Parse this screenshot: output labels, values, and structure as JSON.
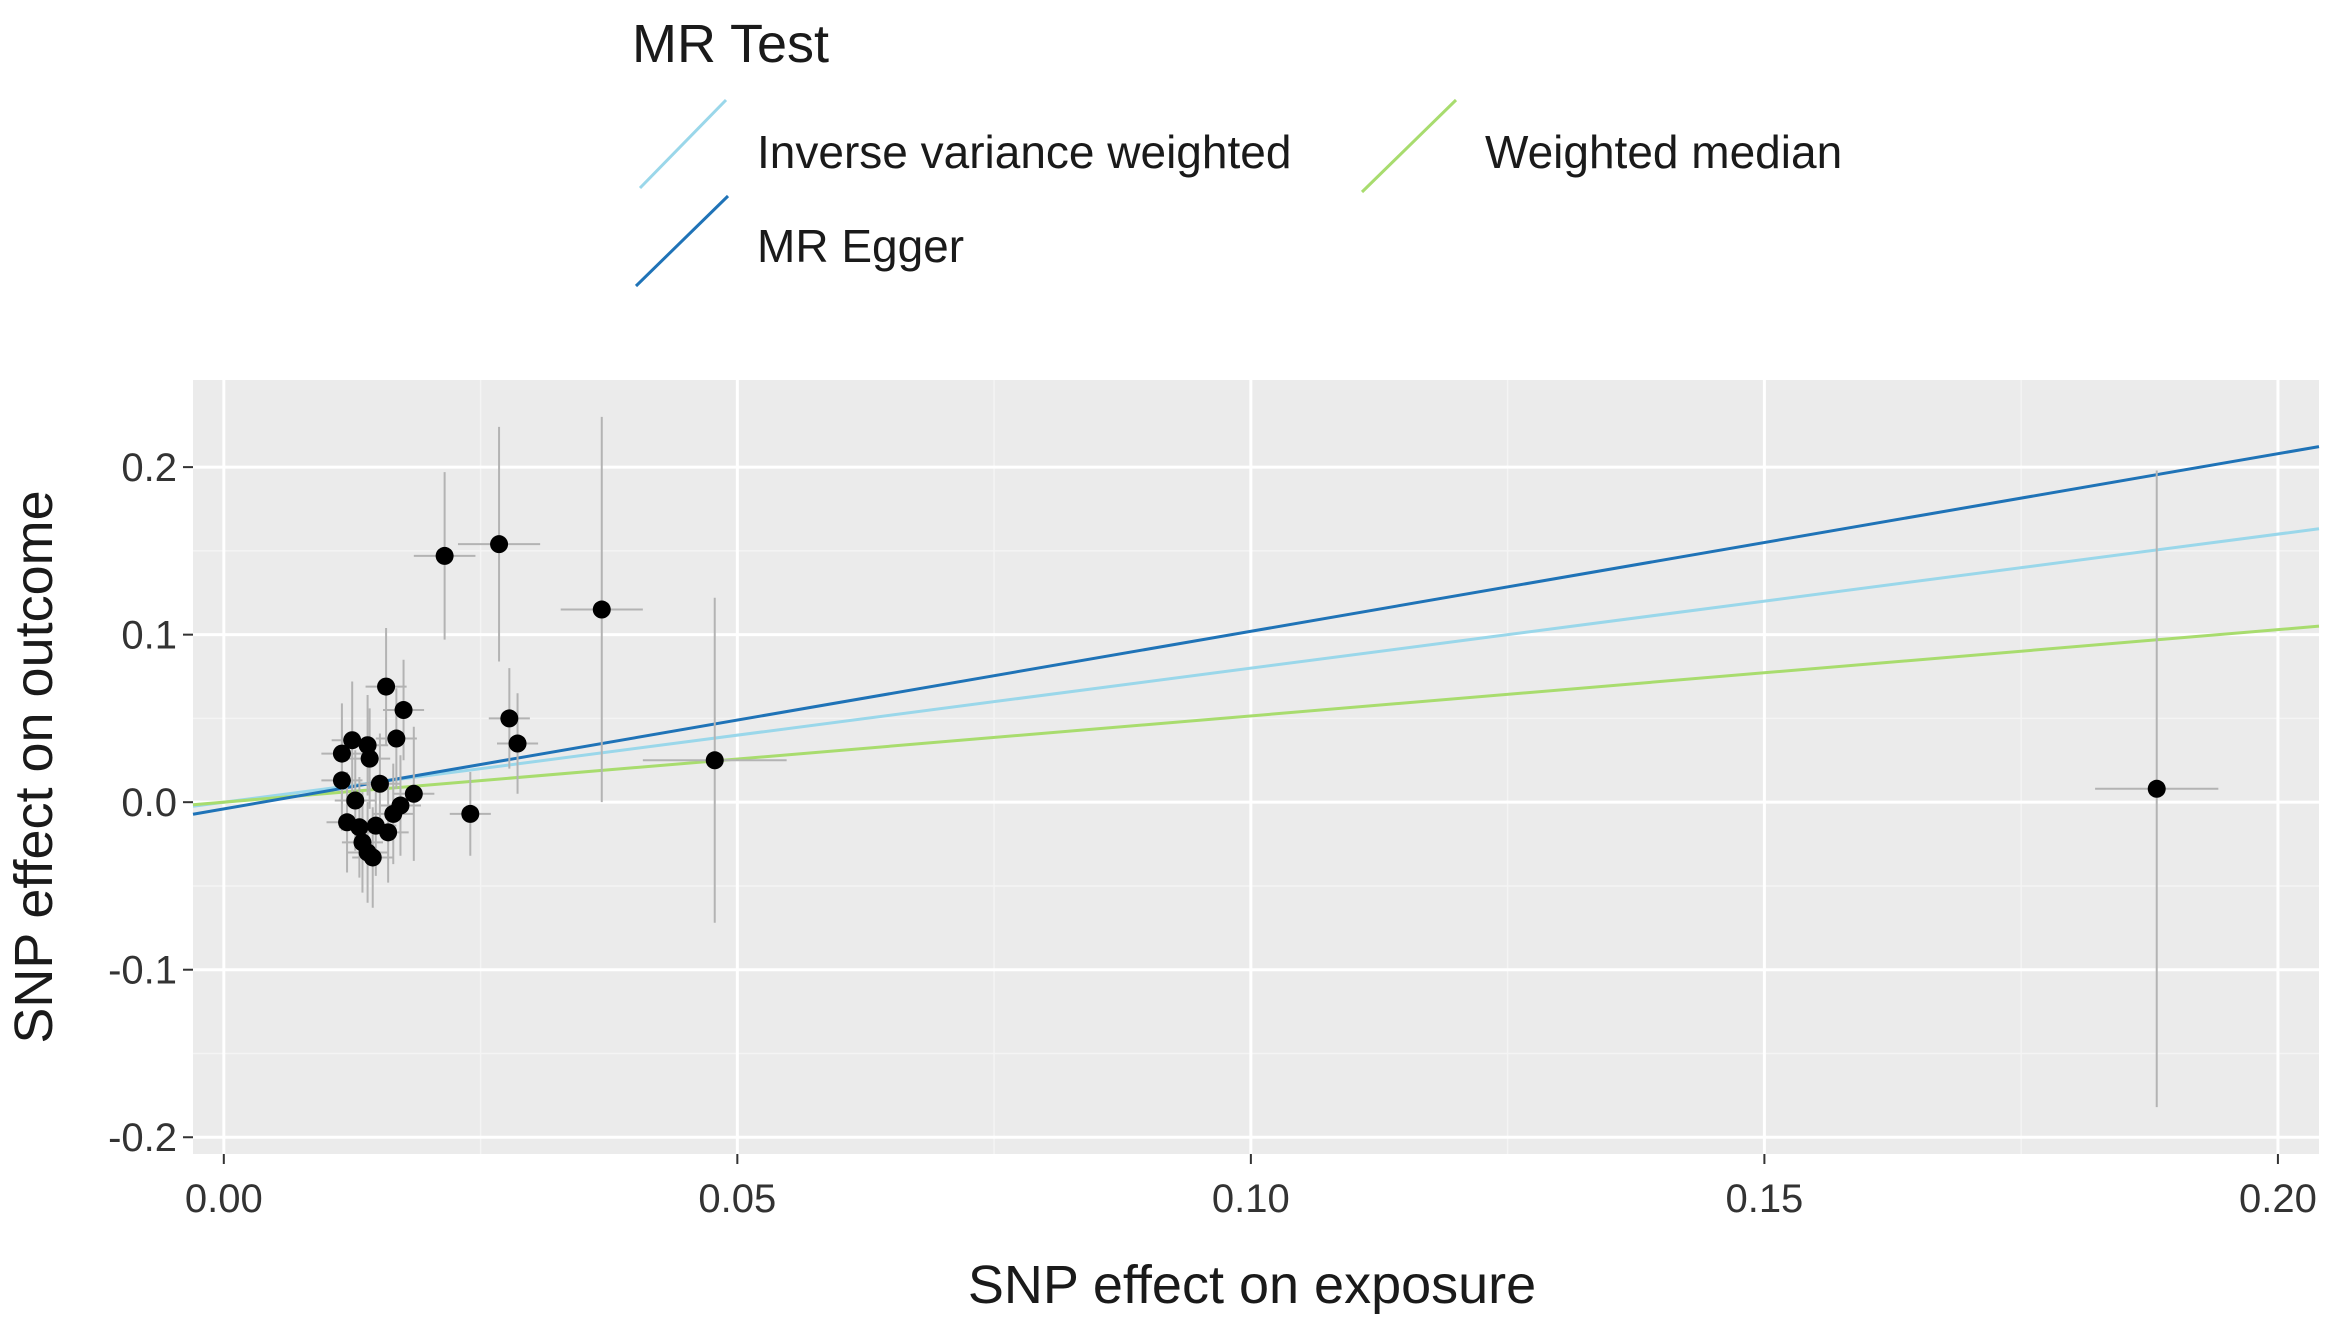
{
  "chart_data": {
    "type": "scatter",
    "title": "",
    "xlabel": "SNP effect on exposure",
    "ylabel": "SNP effect on outcome",
    "xlim": [
      -0.003,
      0.204
    ],
    "ylim": [
      -0.21,
      0.252
    ],
    "xticks": [
      0.0,
      0.05,
      0.1,
      0.15,
      0.2
    ],
    "xtick_labels": [
      "0.00",
      "0.05",
      "0.10",
      "0.15",
      "0.20"
    ],
    "yticks": [
      -0.2,
      -0.1,
      0.0,
      0.1,
      0.2
    ],
    "ytick_labels": [
      "-0.2",
      "-0.1",
      "0.0",
      "0.1",
      "0.2"
    ],
    "grid": true,
    "legend": {
      "title": "MR Test",
      "placement": "top",
      "entries": [
        {
          "label": "Inverse variance weighted",
          "color": "#9ad7ea"
        },
        {
          "label": "Weighted median",
          "color": "#a8dc6e"
        },
        {
          "label": "MR Egger",
          "color": "#1f73b7"
        }
      ]
    },
    "lines": [
      {
        "name": "Inverse variance weighted",
        "color": "#9ad7ea",
        "intercept": 0.0,
        "slope": 0.8
      },
      {
        "name": "Weighted median",
        "color": "#a8dc6e",
        "intercept": 0.0,
        "slope": 0.515
      },
      {
        "name": "MR Egger",
        "color": "#1f73b7",
        "intercept": -0.004,
        "slope": 1.06
      }
    ],
    "points": [
      {
        "x": 0.0115,
        "y": 0.029,
        "xerr": 0.002,
        "yerr": 0.03
      },
      {
        "x": 0.0115,
        "y": 0.013,
        "xerr": 0.002,
        "yerr": 0.03
      },
      {
        "x": 0.012,
        "y": -0.012,
        "xerr": 0.002,
        "yerr": 0.03
      },
      {
        "x": 0.0125,
        "y": 0.037,
        "xerr": 0.002,
        "yerr": 0.035
      },
      {
        "x": 0.0128,
        "y": 0.001,
        "xerr": 0.002,
        "yerr": 0.03
      },
      {
        "x": 0.0132,
        "y": -0.015,
        "xerr": 0.002,
        "yerr": 0.03
      },
      {
        "x": 0.0135,
        "y": -0.024,
        "xerr": 0.002,
        "yerr": 0.03
      },
      {
        "x": 0.014,
        "y": 0.034,
        "xerr": 0.002,
        "yerr": 0.03
      },
      {
        "x": 0.014,
        "y": -0.03,
        "xerr": 0.002,
        "yerr": 0.03
      },
      {
        "x": 0.0142,
        "y": 0.026,
        "xerr": 0.002,
        "yerr": 0.03
      },
      {
        "x": 0.0145,
        "y": -0.033,
        "xerr": 0.002,
        "yerr": 0.03
      },
      {
        "x": 0.0148,
        "y": -0.014,
        "xerr": 0.002,
        "yerr": 0.03
      },
      {
        "x": 0.0152,
        "y": 0.011,
        "xerr": 0.002,
        "yerr": 0.03
      },
      {
        "x": 0.0158,
        "y": 0.069,
        "xerr": 0.002,
        "yerr": 0.035
      },
      {
        "x": 0.016,
        "y": -0.018,
        "xerr": 0.002,
        "yerr": 0.03
      },
      {
        "x": 0.0165,
        "y": -0.007,
        "xerr": 0.002,
        "yerr": 0.03
      },
      {
        "x": 0.0168,
        "y": 0.038,
        "xerr": 0.002,
        "yerr": 0.03
      },
      {
        "x": 0.0172,
        "y": -0.002,
        "xerr": 0.002,
        "yerr": 0.03
      },
      {
        "x": 0.0175,
        "y": 0.055,
        "xerr": 0.002,
        "yerr": 0.03
      },
      {
        "x": 0.0185,
        "y": 0.005,
        "xerr": 0.002,
        "yerr": 0.04
      },
      {
        "x": 0.0215,
        "y": 0.147,
        "xerr": 0.003,
        "yerr": 0.05
      },
      {
        "x": 0.024,
        "y": -0.007,
        "xerr": 0.002,
        "yerr": 0.025
      },
      {
        "x": 0.0268,
        "y": 0.154,
        "xerr": 0.004,
        "yerr": 0.07
      },
      {
        "x": 0.0278,
        "y": 0.05,
        "xerr": 0.002,
        "yerr": 0.03
      },
      {
        "x": 0.0286,
        "y": 0.035,
        "xerr": 0.002,
        "yerr": 0.03
      },
      {
        "x": 0.0368,
        "y": 0.115,
        "xerr": 0.004,
        "yerr": 0.115
      },
      {
        "x": 0.0478,
        "y": 0.025,
        "xerr": 0.007,
        "yerr": 0.097
      },
      {
        "x": 0.1882,
        "y": 0.008,
        "xerr": 0.006,
        "yerr": 0.19
      }
    ]
  }
}
